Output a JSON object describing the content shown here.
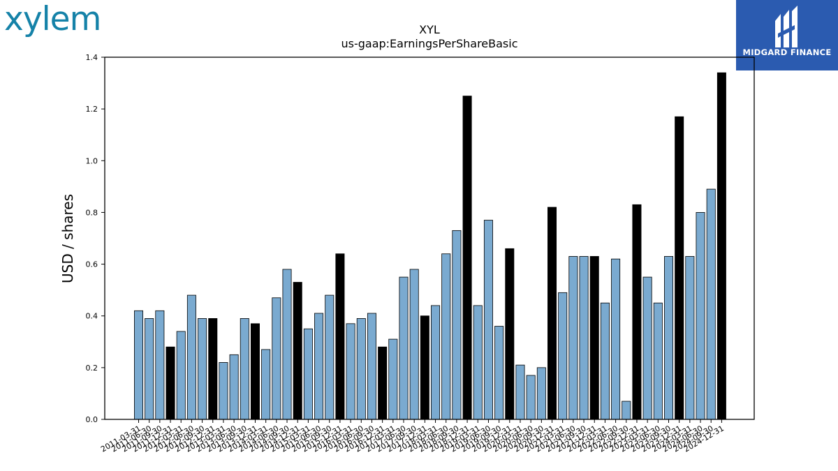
{
  "brand": {
    "logo_text": "xylem"
  },
  "partner": {
    "name": "MIDGARD FINANCE"
  },
  "chart_data": {
    "type": "bar",
    "title": "XYL",
    "subtitle": "us-gaap:EarningsPerShareBasic",
    "xlabel": "",
    "ylabel": "USD / shares",
    "ylim": [
      0,
      1.4
    ],
    "yticks": [
      "0.0",
      "0.2",
      "0.4",
      "0.6",
      "0.8",
      "1.0",
      "1.2",
      "1.4"
    ],
    "grid": false,
    "colors": {
      "quarterly": "#7aaad0",
      "annual": "#000000",
      "edge": "#000000"
    },
    "categories": [
      "2011-03-31",
      "2011-06-30",
      "2011-09-30",
      "2011-12-31",
      "2012-03-31",
      "2012-06-30",
      "2012-09-30",
      "2012-12-31",
      "2013-03-31",
      "2013-06-30",
      "2013-09-30",
      "2013-12-31",
      "2014-03-31",
      "2014-06-30",
      "2014-09-30",
      "2014-12-31",
      "2015-03-31",
      "2015-06-30",
      "2015-09-30",
      "2015-12-31",
      "2016-03-31",
      "2016-06-30",
      "2016-09-30",
      "2016-12-31",
      "2017-03-31",
      "2017-06-30",
      "2017-09-30",
      "2017-12-31",
      "2018-03-31",
      "2018-06-30",
      "2018-09-30",
      "2018-12-31",
      "2019-03-31",
      "2019-06-30",
      "2019-09-30",
      "2019-12-31",
      "2020-03-31",
      "2020-06-30",
      "2020-09-30",
      "2020-12-31",
      "2021-03-31",
      "2021-06-30",
      "2021-09-30",
      "2021-12-31",
      "2022-03-31",
      "2022-06-30",
      "2022-09-30",
      "2022-12-31",
      "2023-03-31",
      "2023-06-30",
      "2023-09-30",
      "2023-12-31",
      "2024-03-31",
      "2024-06-30",
      "2024-09-30",
      "2024-12-31"
    ],
    "values": [
      0.42,
      0.39,
      0.42,
      0.28,
      0.34,
      0.48,
      0.39,
      0.39,
      0.22,
      0.25,
      0.39,
      0.37,
      0.27,
      0.47,
      0.58,
      0.53,
      0.35,
      0.41,
      0.48,
      0.64,
      0.37,
      0.39,
      0.41,
      0.28,
      0.31,
      0.55,
      0.58,
      0.4,
      0.44,
      0.64,
      0.73,
      1.25,
      0.44,
      0.77,
      0.36,
      0.66,
      0.21,
      0.17,
      0.2,
      0.82,
      0.49,
      0.63,
      0.63,
      0.63,
      0.45,
      0.62,
      0.07,
      0.83,
      0.55,
      0.45,
      0.63,
      1.17,
      0.63,
      0.8,
      0.89,
      1.34
    ],
    "period": [
      "Q",
      "Q",
      "Q",
      "FY",
      "Q",
      "Q",
      "Q",
      "FY",
      "Q",
      "Q",
      "Q",
      "FY",
      "Q",
      "Q",
      "Q",
      "FY",
      "Q",
      "Q",
      "Q",
      "FY",
      "Q",
      "Q",
      "Q",
      "FY",
      "Q",
      "Q",
      "Q",
      "FY",
      "Q",
      "Q",
      "Q",
      "FY",
      "Q",
      "Q",
      "Q",
      "FY",
      "Q",
      "Q",
      "Q",
      "FY",
      "Q",
      "Q",
      "Q",
      "FY",
      "Q",
      "Q",
      "Q",
      "FY",
      "Q",
      "Q",
      "Q",
      "FY",
      "Q",
      "Q",
      "Q",
      "FY"
    ]
  }
}
